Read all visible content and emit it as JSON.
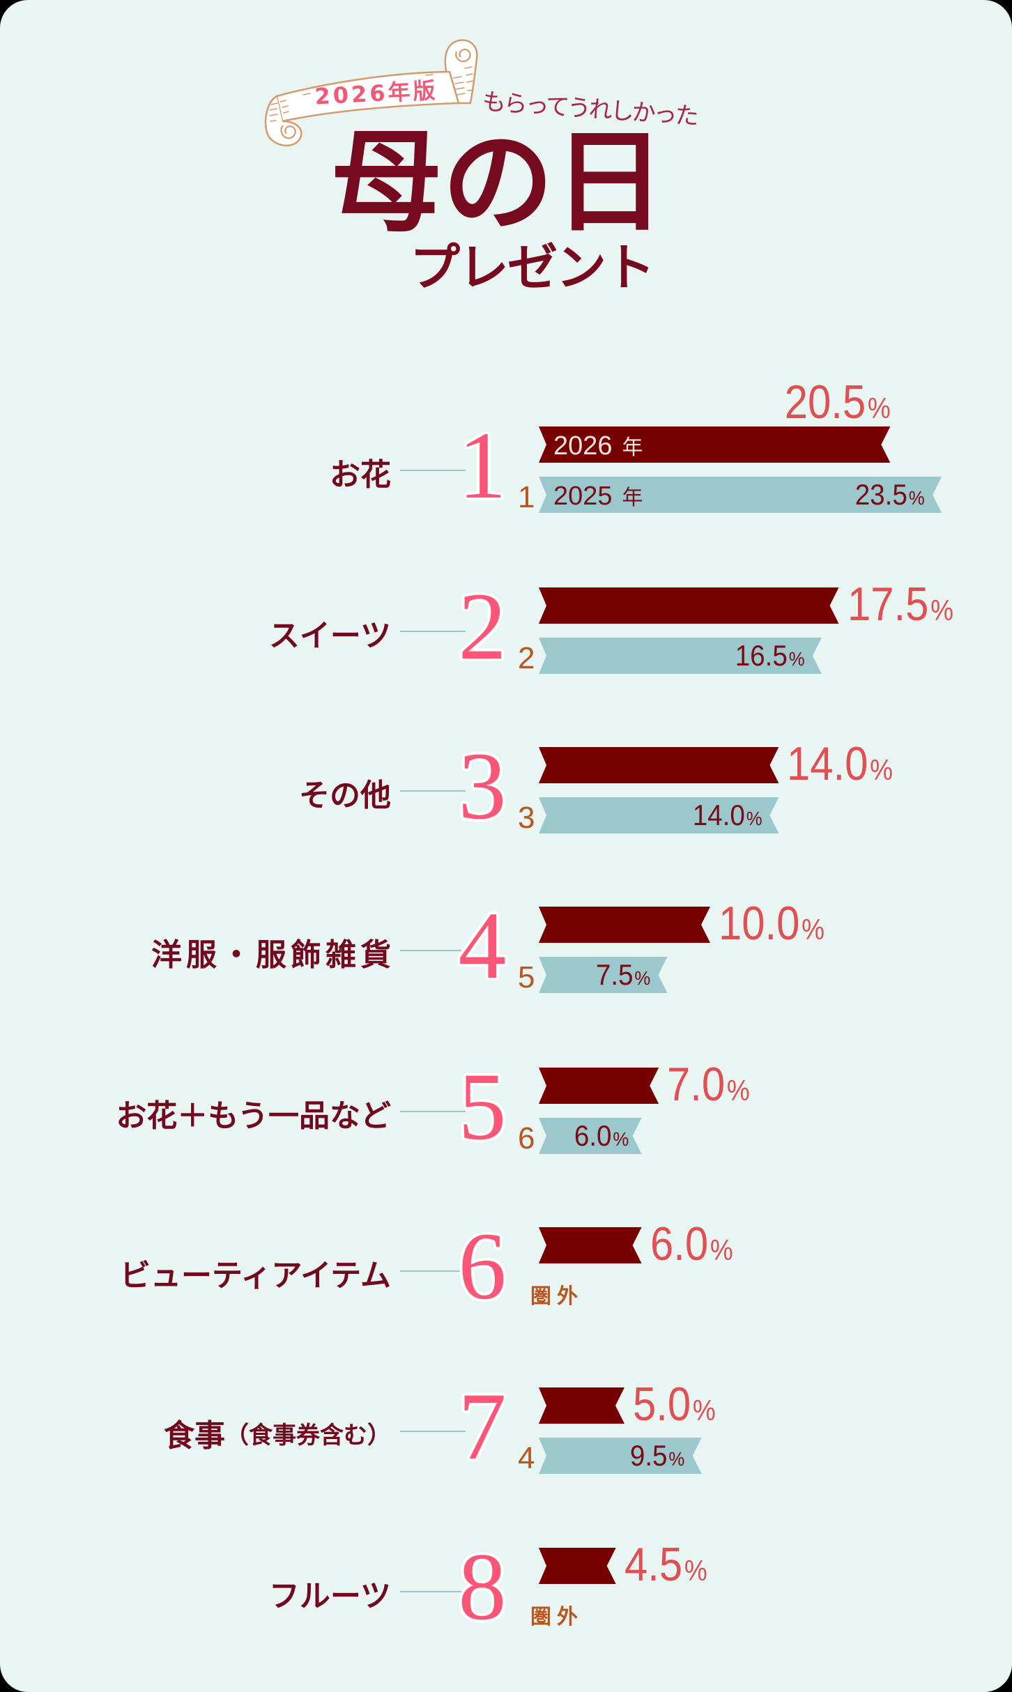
{
  "header": {
    "badge": "2026年版",
    "subtitle": "もらってうれしかった",
    "title": "母の日",
    "title_sub": "プレゼント"
  },
  "legend": {
    "year_2026": "2026",
    "year_2025": "2025",
    "year_suffix": "年"
  },
  "colors": {
    "background": "#e9f5f3",
    "bar_2026": "#760000",
    "bar_2025": "#9ac8cc",
    "pct_2026_text": "#e04f52",
    "pct_2025_text": "#7a0a14",
    "rank_number": "#fb5678",
    "previous_rank": "#b8561e",
    "label_text": "#720a1f",
    "title": "#760a1e",
    "connector": "#9cc8cc"
  },
  "chart_data": {
    "type": "bar",
    "orientation": "horizontal",
    "title": "2026年版 もらってうれしかった 母の日プレゼント",
    "xlabel": "",
    "ylabel": "",
    "unit": "%",
    "grid": false,
    "legend_position": "inline on first row (2026年 / 2025年)",
    "categories": [
      "お花",
      "スイーツ",
      "その他",
      "洋服・服飾雑貨",
      "お花＋もう一品など",
      "ビューティアイテム",
      "食事（食事券含む）",
      "フルーツ"
    ],
    "series": [
      {
        "name": "2026年",
        "values": [
          20.5,
          17.5,
          14.0,
          10.0,
          7.0,
          6.0,
          5.0,
          4.5
        ]
      },
      {
        "name": "2025年",
        "values": [
          23.5,
          16.5,
          14.0,
          7.5,
          6.0,
          null,
          9.5,
          null
        ]
      }
    ],
    "rows": [
      {
        "rank": "1",
        "label": "お花",
        "label_sub": "",
        "prev_rank": "1",
        "pct_2026": 20.5,
        "pct_2026_text": "20.5",
        "pct_2025": 23.5,
        "pct_2025_text": "23.5"
      },
      {
        "rank": "2",
        "label": "スイーツ",
        "label_sub": "",
        "prev_rank": "2",
        "pct_2026": 17.5,
        "pct_2026_text": "17.5",
        "pct_2025": 16.5,
        "pct_2025_text": "16.5"
      },
      {
        "rank": "3",
        "label": "その他",
        "label_sub": "",
        "prev_rank": "3",
        "pct_2026": 14.0,
        "pct_2026_text": "14.0",
        "pct_2025": 14.0,
        "pct_2025_text": "14.0"
      },
      {
        "rank": "4",
        "label": "洋服・服飾雑貨",
        "label_sub": "",
        "prev_rank": "5",
        "pct_2026": 10.0,
        "pct_2026_text": "10.0",
        "pct_2025": 7.5,
        "pct_2025_text": "7.5"
      },
      {
        "rank": "5",
        "label": "お花＋もう一品など",
        "label_sub": "",
        "prev_rank": "6",
        "pct_2026": 7.0,
        "pct_2026_text": "7.0",
        "pct_2025": 6.0,
        "pct_2025_text": "6.0"
      },
      {
        "rank": "6",
        "label": "ビューティアイテム",
        "label_sub": "",
        "prev_rank": "圏外",
        "pct_2026": 6.0,
        "pct_2026_text": "6.0",
        "pct_2025": null,
        "pct_2025_text": null
      },
      {
        "rank": "7",
        "label": "食事",
        "label_sub": "（食事券含む）",
        "prev_rank": "4",
        "pct_2026": 5.0,
        "pct_2026_text": "5.0",
        "pct_2025": 9.5,
        "pct_2025_text": "9.5"
      },
      {
        "rank": "8",
        "label": "フルーツ",
        "label_sub": "",
        "prev_rank": "圏外",
        "pct_2026": 4.5,
        "pct_2026_text": "4.5",
        "pct_2025": null,
        "pct_2025_text": null
      }
    ]
  }
}
